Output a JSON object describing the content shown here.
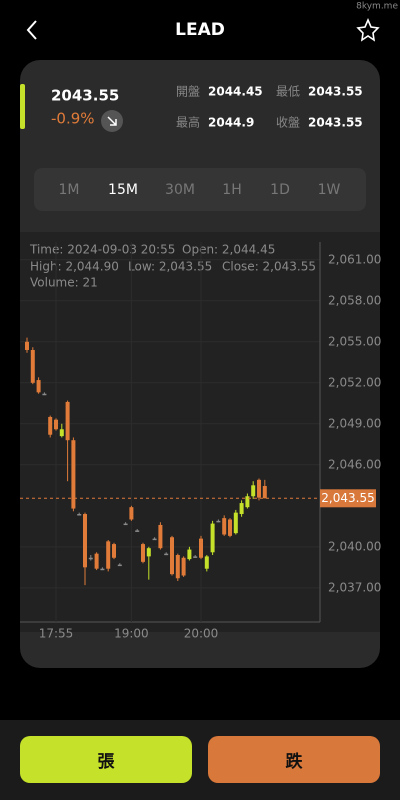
{
  "header": {
    "title": "LEAD",
    "watermark": "8kym.me"
  },
  "quote": {
    "price": "2043.55",
    "change": "-0.9%",
    "stats": [
      {
        "label": "開盤",
        "value": "2044.45"
      },
      {
        "label": "最低",
        "value": "2043.55"
      },
      {
        "label": "最高",
        "value": "2044.9"
      },
      {
        "label": "收盤",
        "value": "2043.55"
      }
    ]
  },
  "tabs": [
    {
      "label": "1M"
    },
    {
      "label": "15M",
      "selected": true
    },
    {
      "label": "30M"
    },
    {
      "label": "1H"
    },
    {
      "label": "1D"
    },
    {
      "label": "1W"
    }
  ],
  "chart_data": {
    "type": "candlestick",
    "info": {
      "time": "Time: 2024-09-03 20:55",
      "open": "Open: 2,044.45",
      "high": "High: 2,044.90",
      "low": "Low: 2,043.55",
      "close": "Close: 2,043.55",
      "volume": "Volume: 21"
    },
    "categories": [
      null,
      null,
      null,
      null,
      null,
      "17:55",
      null,
      null,
      null,
      null,
      null,
      null,
      null,
      null,
      null,
      null,
      null,
      null,
      "19:00",
      null,
      null,
      null,
      null,
      null,
      null,
      null,
      null,
      null,
      null,
      null,
      "20:00",
      null,
      null,
      null,
      null,
      null,
      null,
      null,
      null,
      null,
      null,
      null
    ],
    "open": [
      2055.0,
      2054.4,
      2052.2,
      2051.2,
      2049.5,
      2049.3,
      2048.1,
      2050.6,
      2047.8,
      2042.4,
      2042.4,
      2039.2,
      2039.5,
      2038.4,
      2040.4,
      2040.2,
      2038.7,
      2041.7,
      2042.9,
      2041.2,
      2040.2,
      2039.3,
      2040.6,
      2041.6,
      2039.5,
      2040.7,
      2039.4,
      2039.2,
      2039.1,
      2039.3,
      2040.6,
      2038.4,
      2039.6,
      2041.9,
      2042.1,
      2042.0,
      2041.0,
      2042.4,
      2042.9,
      2043.7,
      2044.9,
      2044.45
    ],
    "high": [
      2055.3,
      2054.6,
      2052.4,
      2051.3,
      2049.6,
      2049.4,
      2049.0,
      2050.7,
      2048.0,
      2042.5,
      2042.5,
      2039.4,
      2039.6,
      2038.5,
      2040.5,
      2040.3,
      2038.8,
      2041.8,
      2043.0,
      2041.3,
      2040.3,
      2040.0,
      2040.7,
      2041.8,
      2039.6,
      2040.8,
      2039.5,
      2039.3,
      2040.0,
      2039.4,
      2040.8,
      2039.4,
      2041.9,
      2042.0,
      2042.3,
      2042.1,
      2042.7,
      2043.4,
      2043.9,
      2044.8,
      2045.0,
      2044.9
    ],
    "low": [
      2054.2,
      2051.9,
      2051.2,
      2051.1,
      2048.0,
      2048.5,
      2048.0,
      2044.8,
      2042.6,
      2042.3,
      2037.2,
      2039.0,
      2038.3,
      2038.3,
      2038.2,
      2039.1,
      2038.6,
      2041.6,
      2041.9,
      2041.1,
      2038.8,
      2037.6,
      2040.5,
      2039.8,
      2039.4,
      2037.9,
      2037.5,
      2037.8,
      2039.0,
      2039.2,
      2039.1,
      2038.2,
      2039.4,
      2041.8,
      2040.8,
      2040.7,
      2040.9,
      2042.2,
      2042.8,
      2043.5,
      2043.4,
      2043.55
    ],
    "close": [
      2054.4,
      2052.0,
      2051.3,
      2051.2,
      2048.2,
      2048.6,
      2048.6,
      2047.8,
      2042.8,
      2042.4,
      2038.5,
      2039.2,
      2038.4,
      2038.4,
      2038.4,
      2039.2,
      2038.7,
      2041.7,
      2042.0,
      2041.2,
      2038.9,
      2039.9,
      2040.6,
      2039.9,
      2039.5,
      2038.0,
      2037.7,
      2037.9,
      2039.8,
      2039.3,
      2039.2,
      2039.3,
      2041.7,
      2041.9,
      2040.9,
      2040.8,
      2042.5,
      2043.2,
      2043.7,
      2044.5,
      2043.6,
      2043.55
    ],
    "up_color": "#c6e12a",
    "down_color": "#e07b39",
    "flat_color": "#8a8a8a",
    "ylim": [
      2034.5,
      2062.3
    ],
    "yticks": [
      {
        "value": 2061,
        "label": "2,061.00"
      },
      {
        "value": 2058,
        "label": "2,058.00"
      },
      {
        "value": 2055,
        "label": "2,055.00"
      },
      {
        "value": 2052,
        "label": "2,052.00"
      },
      {
        "value": 2049,
        "label": "2,049.00"
      },
      {
        "value": 2046,
        "label": "2,046.00"
      },
      {
        "value": 2040,
        "label": "2,040.00"
      },
      {
        "value": 2037,
        "label": "2,037.00"
      }
    ],
    "price_line": {
      "value": 2043.55,
      "label": "2,043.55"
    },
    "grid": true
  },
  "buttons": {
    "buy": "張",
    "sell": "跌"
  }
}
